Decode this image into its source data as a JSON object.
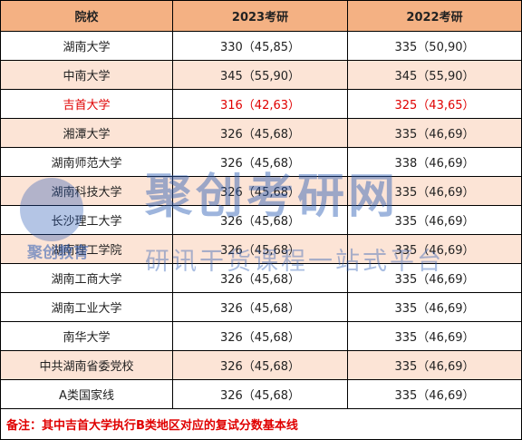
{
  "table": {
    "header": [
      "院校",
      "2023考研",
      "2022考研"
    ],
    "rows": [
      [
        "湖南大学",
        "330（45,85）",
        "335（50,90）"
      ],
      [
        "中南大学",
        "345（55,90）",
        "345（55,90）"
      ],
      [
        "吉首大学",
        "316（42,63）",
        "325（43,65）"
      ],
      [
        "湘潭大学",
        "326（45,68）",
        "335（46,69）"
      ],
      [
        "湖南师范大学",
        "326（45,68）",
        "338（46,69）"
      ],
      [
        "湖南科技大学",
        "326（45,68）",
        "335（46,69）"
      ],
      [
        "长沙理工大学",
        "326（45,68）",
        "335（46,69）"
      ],
      [
        "湖南理工学院",
        "326（45,68）",
        "335（46,69）"
      ],
      [
        "湖南工商大学",
        "326（45,68）",
        "335（46,69）"
      ],
      [
        "湖南工业大学",
        "326（45,68）",
        "335（46,69）"
      ],
      [
        "南华大学",
        "326（45,68）",
        "335（46,69）"
      ],
      [
        "中共湖南省委党校",
        "326（45,68）",
        "335（46,69）"
      ],
      [
        "A类国家线",
        "326（45,68）",
        "335（46,69）"
      ]
    ],
    "note": "备注：其中吉首大学执行B类地区对应的复试分数基本线"
  },
  "watermark": {
    "logo": "聚创教育",
    "title": "聚创考研网",
    "slogan": "研讯干货课程一站式平台"
  }
}
